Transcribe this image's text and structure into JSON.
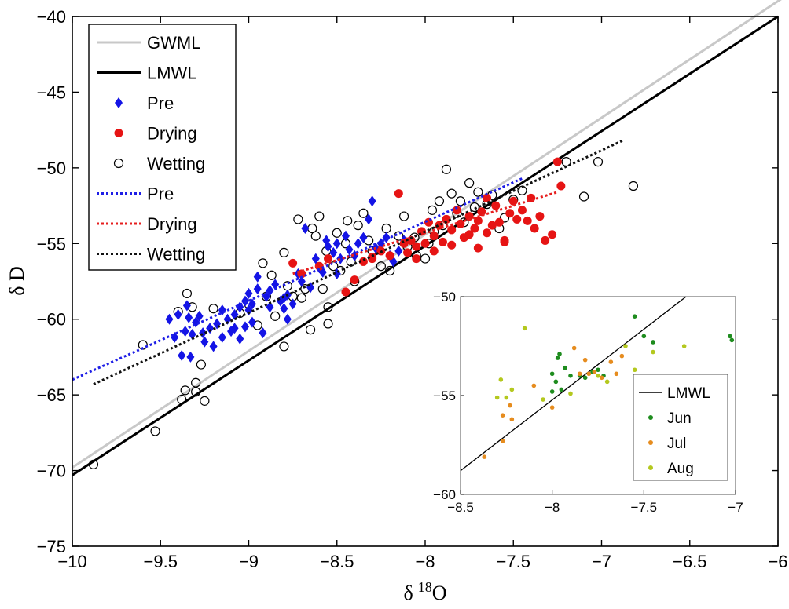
{
  "chart_data": {
    "type": "scatter",
    "xlabel_symbol": "δ",
    "xlabel_sup": "18",
    "xlabel_elem": "O",
    "ylabel": "δ D",
    "xlim": [
      -10,
      -6
    ],
    "ylim": [
      -75,
      -40
    ],
    "xticks": [
      -10,
      -9.5,
      -9,
      -8.5,
      -8,
      -7.5,
      -7,
      -6.5,
      -6
    ],
    "yticks": [
      -40,
      -45,
      -50,
      -55,
      -60,
      -65,
      -70,
      -75
    ],
    "grid": false,
    "legend_position": "top-left",
    "lines": [
      {
        "name": "GWML",
        "color": "#c8c8c8",
        "style": "solid",
        "width": 3,
        "points": [
          [
            -10,
            -69.8
          ],
          [
            -5.95,
            -38.6
          ]
        ]
      },
      {
        "name": "LMWL",
        "color": "#000000",
        "style": "solid",
        "width": 3,
        "points": [
          [
            -10,
            -70.3
          ],
          [
            -6,
            -40.0
          ]
        ]
      },
      {
        "name": "Pre",
        "color": "#1e1ee6",
        "style": "dotted",
        "width": 3,
        "points": [
          [
            -10,
            -64.0
          ],
          [
            -7.45,
            -50.7
          ]
        ]
      },
      {
        "name": "Drying",
        "color": "#e61e1e",
        "style": "dotted",
        "width": 3,
        "points": [
          [
            -8.75,
            -57.0
          ],
          [
            -7.25,
            -51.6
          ]
        ]
      },
      {
        "name": "Wetting",
        "color": "#111111",
        "style": "dotted",
        "width": 3,
        "points": [
          [
            -9.88,
            -64.3
          ],
          [
            -6.88,
            -48.2
          ]
        ]
      }
    ],
    "series": [
      {
        "name": "Pre",
        "marker": "diamond",
        "color": "#1414e6",
        "points": [
          [
            -9.45,
            -60.0
          ],
          [
            -9.42,
            -61.2
          ],
          [
            -9.4,
            -59.7
          ],
          [
            -9.38,
            -62.4
          ],
          [
            -9.36,
            -60.8
          ],
          [
            -9.34,
            -59.9
          ],
          [
            -9.33,
            -62.5
          ],
          [
            -9.32,
            -61.0
          ],
          [
            -9.3,
            -60.2
          ],
          [
            -9.28,
            -59.8
          ],
          [
            -9.25,
            -61.5
          ],
          [
            -9.22,
            -60.6
          ],
          [
            -9.2,
            -61.8
          ],
          [
            -9.18,
            -60.3
          ],
          [
            -9.15,
            -61.2
          ],
          [
            -9.12,
            -60.0
          ],
          [
            -9.1,
            -60.8
          ],
          [
            -9.08,
            -59.7
          ],
          [
            -9.05,
            -61.3
          ],
          [
            -9.02,
            -60.5
          ],
          [
            -9.0,
            -59.4
          ],
          [
            -8.98,
            -60.2
          ],
          [
            -8.95,
            -58.0
          ],
          [
            -8.92,
            -60.9
          ],
          [
            -8.9,
            -58.5
          ],
          [
            -8.88,
            -59.2
          ],
          [
            -8.85,
            -57.7
          ],
          [
            -8.82,
            -58.8
          ],
          [
            -8.8,
            -59.3
          ],
          [
            -8.78,
            -60.0
          ],
          [
            -9.08,
            -60.6
          ],
          [
            -9.05,
            -59.2
          ],
          [
            -9.02,
            -58.8
          ],
          [
            -8.98,
            -59.0
          ],
          [
            -8.95,
            -57.2
          ],
          [
            -8.88,
            -58.1
          ],
          [
            -8.8,
            -58.6
          ],
          [
            -8.75,
            -59.0
          ],
          [
            -8.7,
            -57.5
          ],
          [
            -8.65,
            -57.9
          ],
          [
            -8.6,
            -56.6
          ],
          [
            -8.58,
            -56.9
          ],
          [
            -8.55,
            -55.2
          ],
          [
            -8.52,
            -55.6
          ],
          [
            -8.5,
            -55.0
          ],
          [
            -8.48,
            -56.0
          ],
          [
            -8.45,
            -54.5
          ],
          [
            -8.43,
            -55.4
          ],
          [
            -8.4,
            -55.8
          ],
          [
            -8.38,
            -55.0
          ],
          [
            -8.35,
            -54.6
          ],
          [
            -8.32,
            -53.4
          ],
          [
            -8.3,
            -52.2
          ],
          [
            -8.28,
            -55.3
          ],
          [
            -8.25,
            -55.0
          ],
          [
            -8.22,
            -54.6
          ],
          [
            -8.2,
            -55.8
          ],
          [
            -8.18,
            -56.2
          ],
          [
            -8.15,
            -55.5
          ],
          [
            -8.12,
            -54.8
          ],
          [
            -8.68,
            -54.0
          ],
          [
            -8.62,
            -56.0
          ],
          [
            -8.56,
            -54.8
          ],
          [
            -8.5,
            -57.0
          ],
          [
            -9.0,
            -58.3
          ],
          [
            -9.15,
            -59.4
          ],
          [
            -8.72,
            -57.0
          ],
          [
            -8.78,
            -58.4
          ],
          [
            -9.35,
            -59.1
          ],
          [
            -9.26,
            -60.9
          ]
        ]
      },
      {
        "name": "Drying",
        "marker": "circle",
        "color": "#e61414",
        "points": [
          [
            -8.75,
            -56.3
          ],
          [
            -8.7,
            -57.0
          ],
          [
            -8.6,
            -56.5
          ],
          [
            -8.55,
            -56.0
          ],
          [
            -8.45,
            -58.2
          ],
          [
            -8.4,
            -57.4
          ],
          [
            -8.35,
            -56.2
          ],
          [
            -8.3,
            -56.0
          ],
          [
            -8.25,
            -55.5
          ],
          [
            -8.2,
            -55.8
          ],
          [
            -8.15,
            -51.7
          ],
          [
            -8.12,
            -55.0
          ],
          [
            -8.1,
            -55.6
          ],
          [
            -8.08,
            -54.8
          ],
          [
            -8.05,
            -55.2
          ],
          [
            -8.02,
            -54.2
          ],
          [
            -8.0,
            -55.0
          ],
          [
            -7.98,
            -53.6
          ],
          [
            -7.95,
            -54.5
          ],
          [
            -7.92,
            -53.8
          ],
          [
            -7.9,
            -54.9
          ],
          [
            -7.88,
            -53.4
          ],
          [
            -7.85,
            -54.1
          ],
          [
            -7.82,
            -52.8
          ],
          [
            -7.8,
            -53.7
          ],
          [
            -7.78,
            -54.6
          ],
          [
            -7.75,
            -53.2
          ],
          [
            -7.72,
            -54.0
          ],
          [
            -7.7,
            -53.5
          ],
          [
            -7.68,
            -52.9
          ],
          [
            -7.65,
            -54.3
          ],
          [
            -7.62,
            -53.8
          ],
          [
            -7.6,
            -52.5
          ],
          [
            -7.58,
            -53.6
          ],
          [
            -7.55,
            -54.8
          ],
          [
            -7.52,
            -53.0
          ],
          [
            -7.5,
            -52.2
          ],
          [
            -7.48,
            -53.4
          ],
          [
            -7.45,
            -52.8
          ],
          [
            -7.42,
            -53.5
          ],
          [
            -7.4,
            -52.0
          ],
          [
            -7.38,
            -54.0
          ],
          [
            -7.35,
            -53.2
          ],
          [
            -7.32,
            -54.8
          ],
          [
            -7.28,
            -54.4
          ],
          [
            -7.25,
            -49.6
          ],
          [
            -7.23,
            -51.2
          ],
          [
            -7.65,
            -52.0
          ],
          [
            -7.55,
            -54.9
          ],
          [
            -7.7,
            -55.3
          ],
          [
            -8.05,
            -56.0
          ],
          [
            -8.3,
            -55.9
          ],
          [
            -7.95,
            -55.5
          ],
          [
            -7.85,
            -55.1
          ],
          [
            -7.75,
            -54.4
          ]
        ]
      },
      {
        "name": "Wetting",
        "marker": "open-circle",
        "color": "#000000",
        "points": [
          [
            -9.88,
            -69.6
          ],
          [
            -9.6,
            -61.7
          ],
          [
            -9.53,
            -67.4
          ],
          [
            -9.4,
            -59.5
          ],
          [
            -9.38,
            -65.3
          ],
          [
            -9.36,
            -64.7
          ],
          [
            -9.35,
            -58.3
          ],
          [
            -9.32,
            -59.2
          ],
          [
            -9.3,
            -64.2
          ],
          [
            -9.3,
            -64.8
          ],
          [
            -9.27,
            -63.0
          ],
          [
            -9.25,
            -65.4
          ],
          [
            -9.2,
            -59.3
          ],
          [
            -9.0,
            -59.0
          ],
          [
            -8.95,
            -60.4
          ],
          [
            -8.92,
            -56.3
          ],
          [
            -8.9,
            -58.5
          ],
          [
            -8.85,
            -59.8
          ],
          [
            -8.8,
            -55.6
          ],
          [
            -8.8,
            -61.8
          ],
          [
            -8.75,
            -58.5
          ],
          [
            -8.72,
            -53.4
          ],
          [
            -8.7,
            -58.6
          ],
          [
            -8.65,
            -60.7
          ],
          [
            -8.62,
            -54.5
          ],
          [
            -8.6,
            -53.2
          ],
          [
            -8.58,
            -58.0
          ],
          [
            -8.55,
            -59.2
          ],
          [
            -8.55,
            -60.3
          ],
          [
            -8.5,
            -54.3
          ],
          [
            -8.45,
            -55.0
          ],
          [
            -8.42,
            -56.2
          ],
          [
            -8.38,
            -53.8
          ],
          [
            -8.35,
            -53.0
          ],
          [
            -8.3,
            -55.5
          ],
          [
            -8.25,
            -56.5
          ],
          [
            -8.2,
            -56.8
          ],
          [
            -8.15,
            -54.5
          ],
          [
            -8.1,
            -55.2
          ],
          [
            -8.05,
            -55.8
          ],
          [
            -8.0,
            -56.0
          ],
          [
            -7.98,
            -55.0
          ],
          [
            -7.95,
            -54.2
          ],
          [
            -7.92,
            -52.2
          ],
          [
            -7.9,
            -53.8
          ],
          [
            -7.88,
            -50.1
          ],
          [
            -7.85,
            -51.7
          ],
          [
            -7.8,
            -52.2
          ],
          [
            -7.78,
            -53.6
          ],
          [
            -7.75,
            -51.0
          ],
          [
            -7.7,
            -51.6
          ],
          [
            -7.65,
            -52.4
          ],
          [
            -7.62,
            -51.8
          ],
          [
            -7.58,
            -54.0
          ],
          [
            -7.55,
            -53.3
          ],
          [
            -7.5,
            -52.1
          ],
          [
            -7.45,
            -51.5
          ],
          [
            -7.2,
            -49.6
          ],
          [
            -7.1,
            -51.9
          ],
          [
            -7.02,
            -49.6
          ],
          [
            -6.82,
            -51.2
          ],
          [
            -8.64,
            -54.0
          ],
          [
            -8.56,
            -55.5
          ],
          [
            -8.48,
            -56.8
          ],
          [
            -9.05,
            -59.6
          ],
          [
            -8.68,
            -58.0
          ],
          [
            -8.4,
            -57.5
          ],
          [
            -8.32,
            -54.8
          ],
          [
            -8.22,
            -54.0
          ],
          [
            -8.12,
            -53.2
          ],
          [
            -7.82,
            -53.0
          ],
          [
            -7.72,
            -52.6
          ],
          [
            -8.87,
            -57.1
          ],
          [
            -8.78,
            -57.8
          ],
          [
            -8.52,
            -56.5
          ],
          [
            -8.44,
            -53.5
          ],
          [
            -8.06,
            -54.6
          ],
          [
            -7.96,
            -52.8
          ]
        ]
      }
    ],
    "inset": {
      "xlim": [
        -8.5,
        -7.0
      ],
      "ylim": [
        -60,
        -50
      ],
      "xticks": [
        -8.5,
        -8,
        -7.5,
        -7
      ],
      "yticks": [
        -50,
        -55,
        -60
      ],
      "legend_position": "bottom-right",
      "lmwl": {
        "name": "LMWL",
        "color": "#000000",
        "points": [
          [
            -8.5,
            -58.8
          ],
          [
            -7.27,
            -50.0
          ]
        ]
      },
      "series": [
        {
          "name": "Jun",
          "color": "#1e8c1e",
          "points": [
            [
              -8.0,
              -53.9
            ],
            [
              -7.98,
              -54.3
            ],
            [
              -7.97,
              -53.1
            ],
            [
              -7.96,
              -52.9
            ],
            [
              -7.93,
              -53.6
            ],
            [
              -7.9,
              -54.0
            ],
            [
              -7.85,
              -54.0
            ],
            [
              -7.82,
              -54.1
            ],
            [
              -7.78,
              -53.8
            ],
            [
              -7.75,
              -53.7
            ],
            [
              -7.72,
              -54.0
            ],
            [
              -7.03,
              -52.0
            ],
            [
              -7.02,
              -52.2
            ],
            [
              -7.5,
              -52.0
            ],
            [
              -7.45,
              -52.3
            ],
            [
              -7.55,
              -51.0
            ],
            [
              -8.0,
              -54.8
            ],
            [
              -7.95,
              -54.7
            ]
          ]
        },
        {
          "name": "Jul",
          "color": "#e68c1e",
          "points": [
            [
              -8.37,
              -58.1
            ],
            [
              -8.27,
              -56.0
            ],
            [
              -8.27,
              -57.3
            ],
            [
              -8.23,
              -55.5
            ],
            [
              -8.22,
              -56.2
            ],
            [
              -8.1,
              -54.5
            ],
            [
              -8.0,
              -55.6
            ],
            [
              -7.88,
              -52.6
            ],
            [
              -7.85,
              -53.9
            ],
            [
              -7.82,
              -53.2
            ],
            [
              -7.8,
              -53.9
            ],
            [
              -7.77,
              -53.8
            ],
            [
              -7.73,
              -54.1
            ],
            [
              -7.68,
              -53.3
            ],
            [
              -7.65,
              -53.9
            ],
            [
              -7.62,
              -53.0
            ]
          ]
        },
        {
          "name": "Aug",
          "color": "#b4c81e",
          "points": [
            [
              -8.28,
              -54.2
            ],
            [
              -8.25,
              -55.1
            ],
            [
              -8.22,
              -54.7
            ],
            [
              -8.15,
              -51.6
            ],
            [
              -8.05,
              -55.2
            ],
            [
              -7.9,
              -54.9
            ],
            [
              -7.75,
              -54.0
            ],
            [
              -7.7,
              -54.3
            ],
            [
              -7.6,
              -52.5
            ],
            [
              -7.55,
              -53.7
            ],
            [
              -7.45,
              -52.8
            ],
            [
              -7.28,
              -52.5
            ],
            [
              -8.3,
              -55.1
            ]
          ]
        }
      ]
    }
  }
}
